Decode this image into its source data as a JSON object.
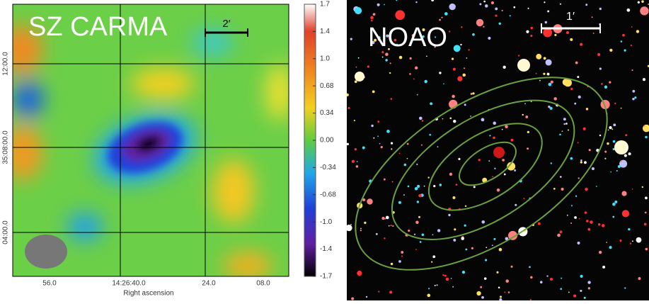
{
  "left_panel": {
    "label": "SZ CARMA",
    "scale_bar": "2′",
    "x_ticks": [
      "56.0",
      "14:26:40.0",
      "24.0",
      "08.0"
    ],
    "x_axis_label": "Right ascension",
    "y_ticks": [
      "12:00.0",
      "35:08:00.0",
      "04:00.0"
    ]
  },
  "colorbar": {
    "ticks": [
      1.7,
      1.4,
      {
        "value": 1.0,
        "label": "1.0"
      },
      0.68,
      0.34,
      {
        "value": 0,
        "label": "0.00"
      },
      -0.34,
      -0.68,
      {
        "value": -1.0,
        "label": "-1.0"
      },
      -1.4,
      -1.7
    ]
  },
  "right_panel": {
    "label": "NOAO",
    "scale_bar": "1′"
  }
}
